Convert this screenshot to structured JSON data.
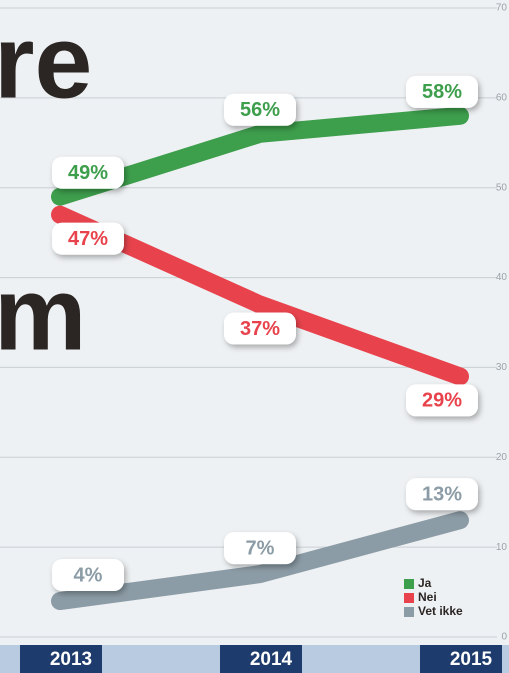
{
  "chart_data": {
    "type": "line",
    "annotations": [
      "re",
      "m"
    ],
    "categories": [
      "2013",
      "2014",
      "2015"
    ],
    "series": [
      {
        "name": "Ja",
        "color": "#3d9e4c",
        "values": [
          49,
          56,
          58
        ],
        "value_labels": [
          "49%",
          "56%",
          "58%"
        ]
      },
      {
        "name": "Nei",
        "color": "#e8434c",
        "values": [
          47,
          37,
          29
        ],
        "value_labels": [
          "47%",
          "37%",
          "29%"
        ]
      },
      {
        "name": "Vet ikke",
        "color": "#8c9ca6",
        "values": [
          4,
          7,
          13
        ],
        "value_labels": [
          "4%",
          "7%",
          "13%"
        ]
      }
    ],
    "ylim": [
      0,
      70
    ],
    "yticks": [
      0,
      10,
      20,
      30,
      40,
      50,
      60,
      70
    ],
    "grid": true,
    "legend": "lower right"
  }
}
